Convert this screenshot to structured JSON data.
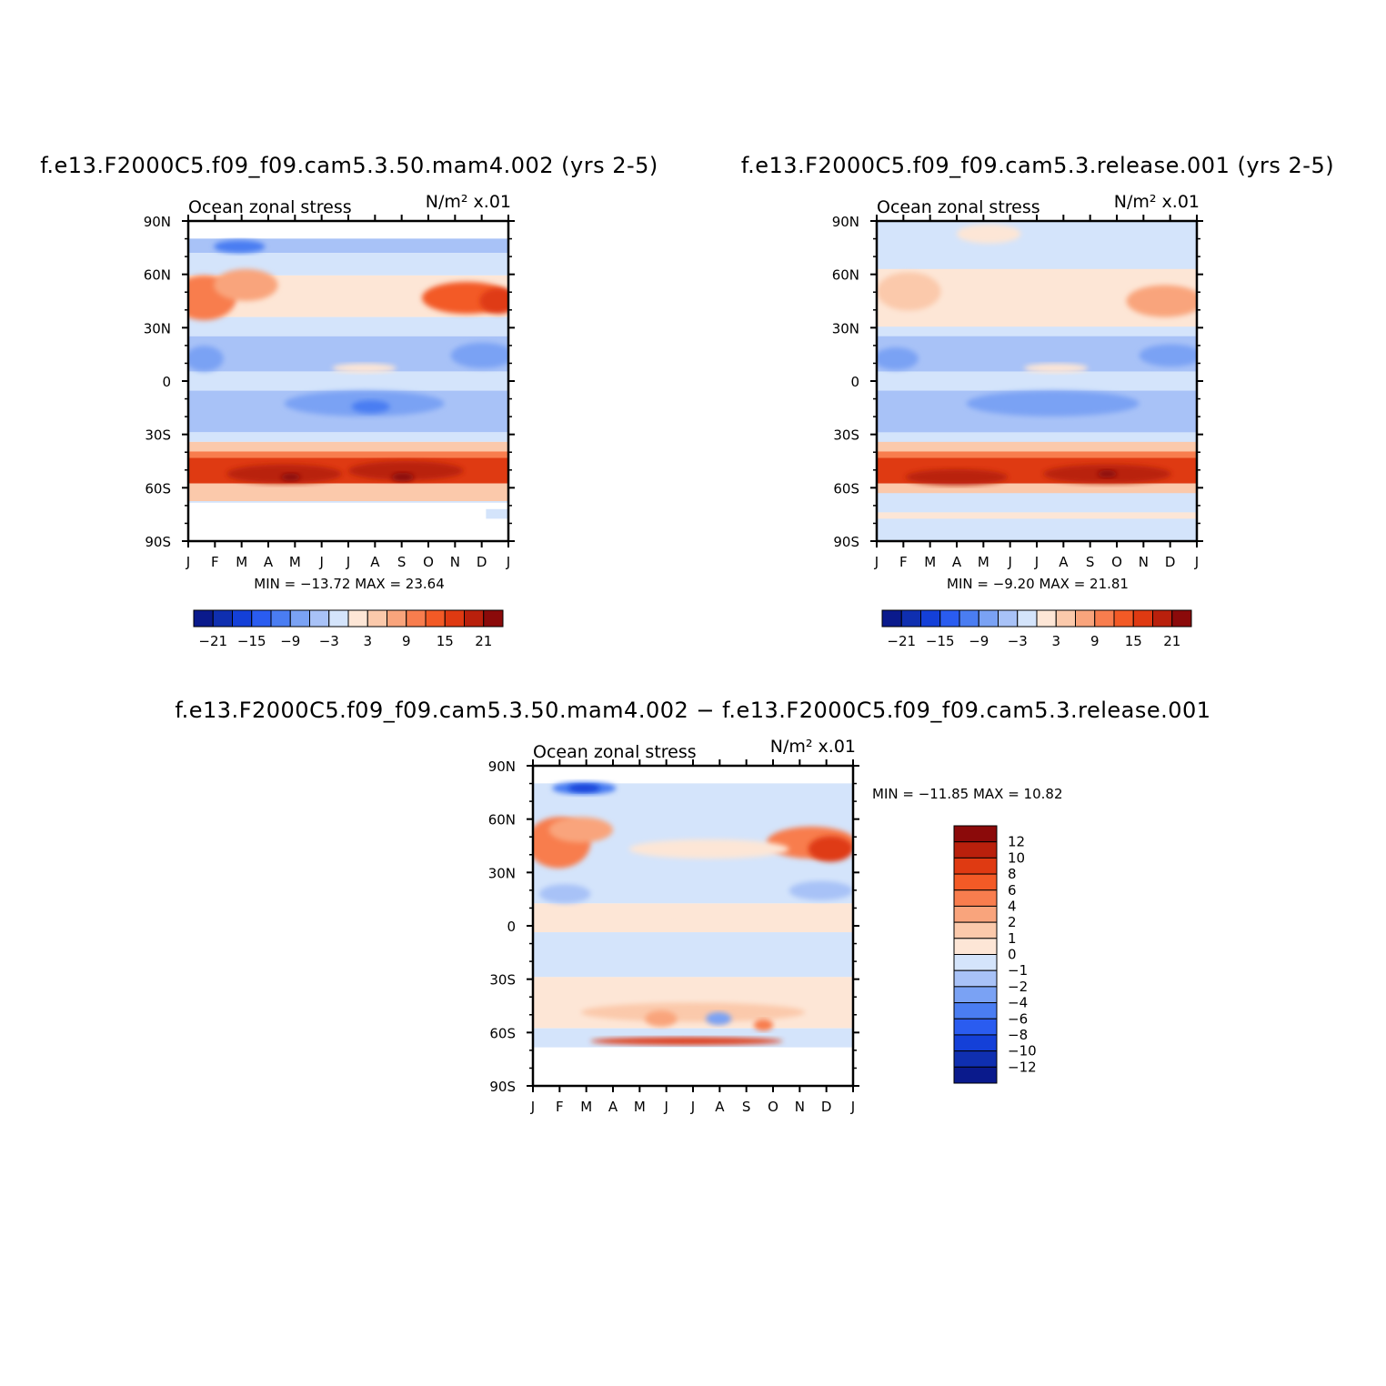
{
  "colors": {
    "neg": [
      "#0a1a8c",
      "#0f2fb0",
      "#1440d8",
      "#2a5cf0",
      "#4a7df2",
      "#7aa2f4",
      "#a8c2f7",
      "#d4e4fb"
    ],
    "pos": [
      "#fde6d6",
      "#fbc9ab",
      "#f9a47c",
      "#f87d4e",
      "#f35a26",
      "#df3a12",
      "#b9200c",
      "#8b0a0a"
    ]
  },
  "month_ticks": [
    "J",
    "F",
    "M",
    "A",
    "M",
    "J",
    "J",
    "A",
    "S",
    "O",
    "N",
    "D",
    "J"
  ],
  "lat_ticks": [
    "90N",
    "60N",
    "30N",
    "0",
    "30S",
    "60S",
    "90S"
  ],
  "chart_data": [
    {
      "type": "heatmap",
      "title": "f.e13.F2000C5.f09_f09.cam5.3.50.mam4.002 (yrs 2-5)",
      "subtitle_left": "Ocean zonal stress",
      "subtitle_right": "N/m² x.01",
      "stats": "MIN =  −13.72  MAX =   23.64",
      "x_labels": [
        "J",
        "F",
        "M",
        "A",
        "M",
        "J",
        "J",
        "A",
        "S",
        "O",
        "N",
        "D",
        "J"
      ],
      "y_labels": [
        "90N",
        "60N",
        "30N",
        "0",
        "30S",
        "60S",
        "90S"
      ],
      "min": -13.72,
      "max": 23.64,
      "colorbar_ticks": [
        "−21",
        "−15",
        "−9",
        "−3",
        "3",
        "9",
        "15",
        "21"
      ],
      "colorbar_levels": [
        -24,
        -21,
        -18,
        -15,
        -12,
        -9,
        -6,
        -3,
        0,
        3,
        6,
        9,
        12,
        15,
        18,
        21,
        24
      ]
    },
    {
      "type": "heatmap",
      "title": "f.e13.F2000C5.f09_f09.cam5.3.release.001 (yrs 2-5)",
      "subtitle_left": "Ocean zonal stress",
      "subtitle_right": "N/m² x.01",
      "stats": "MIN =   −9.20  MAX =   21.81",
      "x_labels": [
        "J",
        "F",
        "M",
        "A",
        "M",
        "J",
        "J",
        "A",
        "S",
        "O",
        "N",
        "D",
        "J"
      ],
      "y_labels": [
        "90N",
        "60N",
        "30N",
        "0",
        "30S",
        "60S",
        "90S"
      ],
      "min": -9.2,
      "max": 21.81,
      "colorbar_ticks": [
        "−21",
        "−15",
        "−9",
        "−3",
        "3",
        "9",
        "15",
        "21"
      ],
      "colorbar_levels": [
        -24,
        -21,
        -18,
        -15,
        -12,
        -9,
        -6,
        -3,
        0,
        3,
        6,
        9,
        12,
        15,
        18,
        21,
        24
      ]
    },
    {
      "type": "heatmap",
      "title": "f.e13.F2000C5.f09_f09.cam5.3.50.mam4.002 − f.e13.F2000C5.f09_f09.cam5.3.release.001",
      "subtitle_left": "Ocean zonal stress",
      "subtitle_right": "N/m² x.01",
      "stats": "MIN = −11.85  MAX =   10.82",
      "x_labels": [
        "J",
        "F",
        "M",
        "A",
        "M",
        "J",
        "J",
        "A",
        "S",
        "O",
        "N",
        "D",
        "J"
      ],
      "y_labels": [
        "90N",
        "60N",
        "30N",
        "0",
        "30S",
        "60S",
        "90S"
      ],
      "min": -11.85,
      "max": 10.82,
      "colorbar_ticks": [
        "12",
        "10",
        "8",
        "6",
        "4",
        "2",
        "1",
        "0",
        "−1",
        "−2",
        "−4",
        "−6",
        "−8",
        "−10",
        "−12"
      ],
      "colorbar_levels": [
        -14,
        -12,
        -10,
        -8,
        -6,
        -4,
        -2,
        -1,
        0,
        1,
        2,
        4,
        6,
        8,
        10,
        12,
        14
      ]
    }
  ]
}
